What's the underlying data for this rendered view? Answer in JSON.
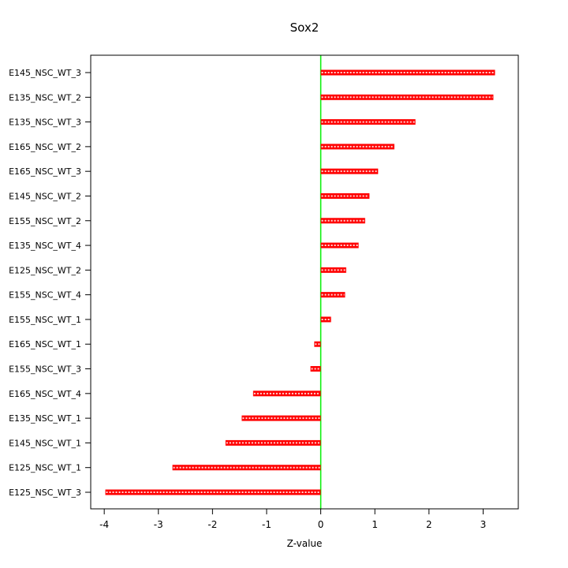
{
  "chart_data": {
    "type": "bar",
    "orientation": "horizontal",
    "title": "Sox2",
    "xlabel": "Z-value",
    "ylabel": "",
    "grid": false,
    "legend": false,
    "xlim": [
      -4.25,
      3.65
    ],
    "xticks": [
      -4,
      -3,
      -2,
      -1,
      0,
      1,
      2,
      3
    ],
    "categories_top_to_bottom": [
      "E145_NSC_WT_3",
      "E135_NSC_WT_2",
      "E135_NSC_WT_3",
      "E165_NSC_WT_2",
      "E165_NSC_WT_3",
      "E145_NSC_WT_2",
      "E155_NSC_WT_2",
      "E135_NSC_WT_4",
      "E125_NSC_WT_2",
      "E155_NSC_WT_4",
      "E155_NSC_WT_1",
      "E165_NSC_WT_1",
      "E155_NSC_WT_3",
      "E165_NSC_WT_4",
      "E135_NSC_WT_1",
      "E145_NSC_WT_1",
      "E125_NSC_WT_1",
      "E125_NSC_WT_3"
    ],
    "values": [
      3.22,
      3.19,
      1.75,
      1.36,
      1.06,
      0.9,
      0.82,
      0.7,
      0.47,
      0.45,
      0.19,
      -0.12,
      -0.19,
      -1.25,
      -1.46,
      -1.76,
      -2.74,
      -3.98
    ],
    "bar_color": "#ff0000",
    "bar_texture_color": "#ffffff",
    "zero_line_color": "#00ee00",
    "axis_color": "#000000",
    "background_color": "#ffffff"
  }
}
